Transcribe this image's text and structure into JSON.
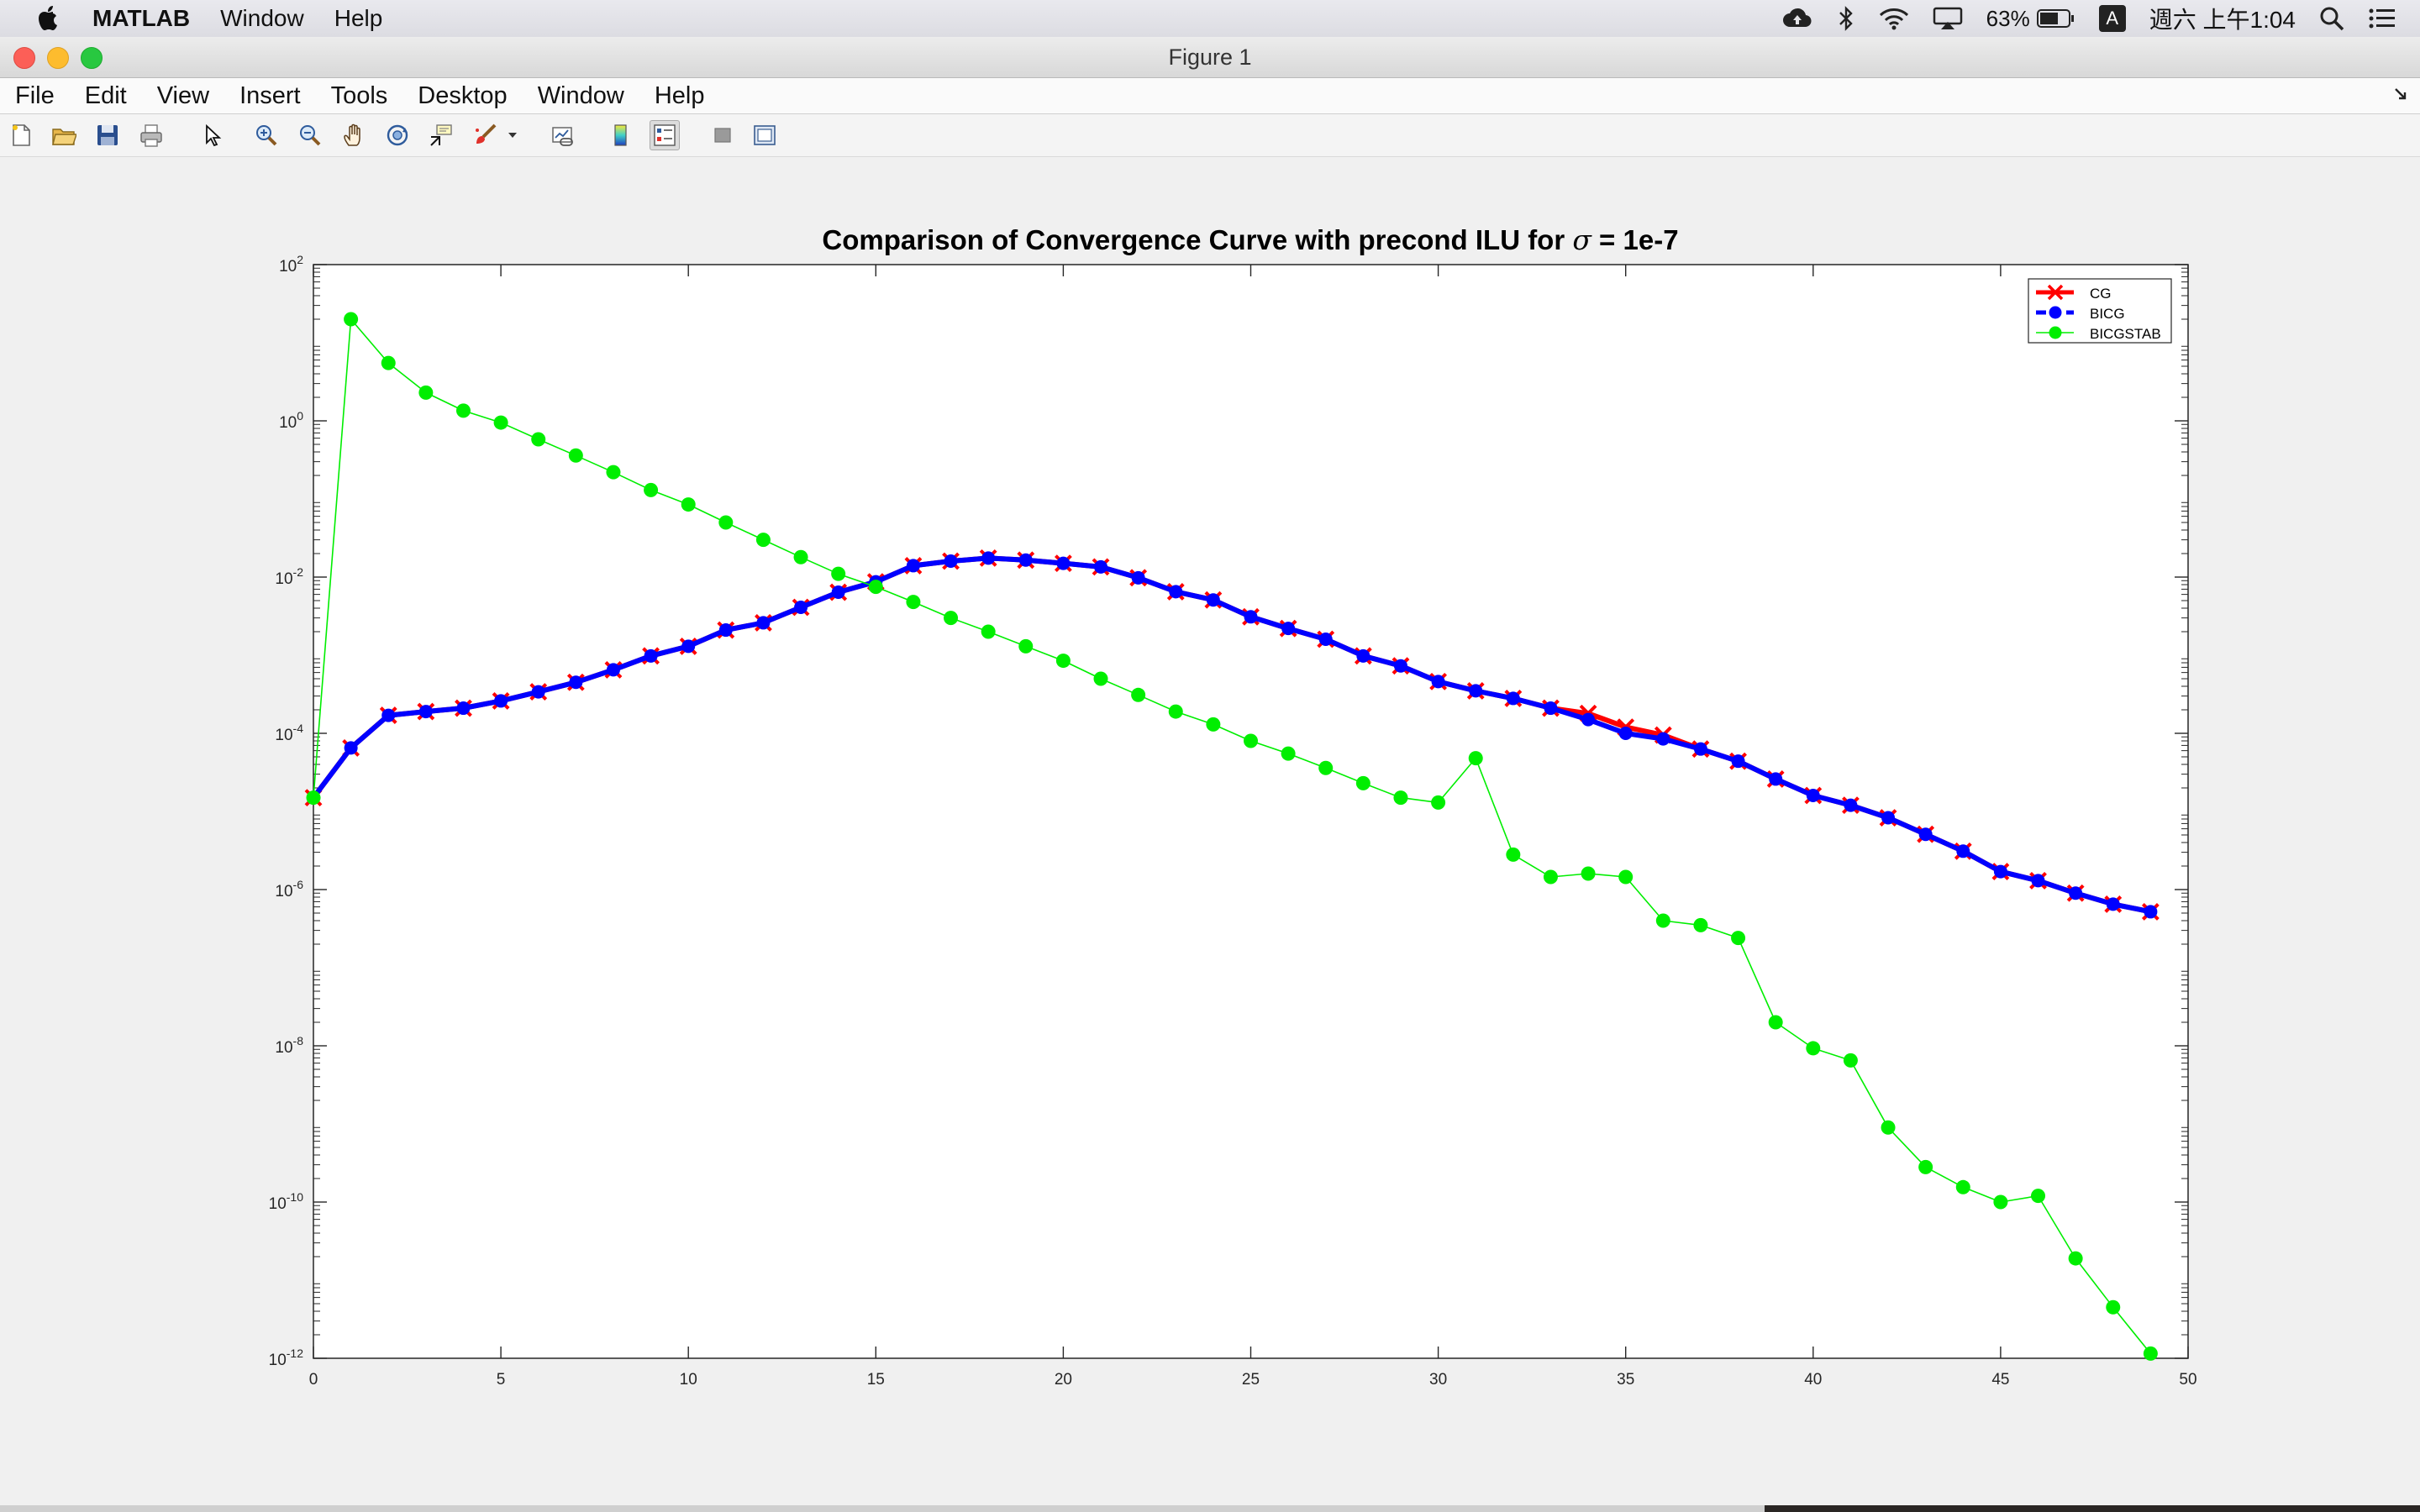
{
  "menubar": {
    "app_name": "MATLAB",
    "items": [
      "Window",
      "Help"
    ],
    "battery": "63%",
    "ime": "A",
    "clock": "週六 上午1:04"
  },
  "window": {
    "title": "Figure 1"
  },
  "figure_menu": [
    "File",
    "Edit",
    "View",
    "Insert",
    "Tools",
    "Desktop",
    "Window",
    "Help"
  ],
  "toolbar": {
    "icons": [
      "new-figure-icon",
      "open-file-icon",
      "save-icon",
      "print-icon",
      "edit-plot-pointer-icon",
      "zoom-in-icon",
      "zoom-out-icon",
      "pan-hand-icon",
      "rotate-3d-icon",
      "data-cursor-icon",
      "brush-icon",
      "brush-dropdown-icon",
      "link-plot-icon",
      "colorbar-icon",
      "legend-icon",
      "hide-plot-tools-icon",
      "show-plot-tools-icon"
    ]
  },
  "colors": {
    "cg": "#ff0000",
    "bicg": "#0000ff",
    "bicgstab": "#00ee00"
  },
  "chart_data": {
    "type": "line",
    "title": "Comparison of Convergence Curve with precond ILU for σ = 1e-7",
    "title_prefix": "Comparison of Convergence Curve with precond ILU for ",
    "title_symbol": "σ",
    "title_suffix": " = 1e-7",
    "xlabel": "",
    "ylabel": "",
    "xlim": [
      0,
      50
    ],
    "ylim": [
      1e-12,
      100
    ],
    "yscale": "log",
    "grid": false,
    "legend_position": "top-right",
    "x_ticks": [
      0,
      5,
      10,
      15,
      20,
      25,
      30,
      35,
      40,
      45,
      50
    ],
    "x_tick_labels": [
      "0",
      "5",
      "10",
      "15",
      "20",
      "25",
      "30",
      "35",
      "40",
      "45",
      "50"
    ],
    "y_tick_exponents": [
      2,
      0,
      -2,
      -4,
      -6,
      -8,
      -10,
      -12
    ],
    "y_tick_base": "10",
    "x": [
      0,
      1,
      2,
      3,
      4,
      5,
      6,
      7,
      8,
      9,
      10,
      11,
      12,
      13,
      14,
      15,
      16,
      17,
      18,
      19,
      20,
      21,
      22,
      23,
      24,
      25,
      26,
      27,
      28,
      29,
      30,
      31,
      32,
      33,
      34,
      35,
      36,
      37,
      38,
      39,
      40,
      41,
      42,
      43,
      44,
      45,
      46,
      47,
      48,
      49
    ],
    "series": [
      {
        "name": "CG",
        "color": "#ff0000",
        "marker": "x",
        "line": "solid",
        "values": [
          1.5e-05,
          6.5e-05,
          0.00017,
          0.00019,
          0.00021,
          0.00026,
          0.00034,
          0.00045,
          0.00065,
          0.00098,
          0.0013,
          0.0021,
          0.0026,
          0.0041,
          0.0064,
          0.0087,
          0.014,
          0.016,
          0.0175,
          0.0165,
          0.015,
          0.0135,
          0.0098,
          0.0065,
          0.0051,
          0.0031,
          0.0022,
          0.0016,
          0.00098,
          0.00073,
          0.00046,
          0.00035,
          0.00028,
          0.00021,
          0.00018,
          0.00012,
          9.5e-05,
          6.3e-05,
          4.4e-05,
          2.6e-05,
          1.6e-05,
          1.2e-05,
          8.3e-06,
          5.1e-06,
          3.1e-06,
          1.7e-06,
          1.3e-06,
          9e-07,
          6.5e-07,
          5.2e-07
        ]
      },
      {
        "name": "BICG",
        "color": "#0000ff",
        "marker": "o",
        "line": "dashed",
        "values": [
          1.5e-05,
          6.5e-05,
          0.00017,
          0.00019,
          0.00021,
          0.00026,
          0.00034,
          0.00045,
          0.00065,
          0.00098,
          0.0013,
          0.0021,
          0.0026,
          0.0041,
          0.0064,
          0.0087,
          0.014,
          0.016,
          0.0175,
          0.0165,
          0.015,
          0.0135,
          0.0098,
          0.0065,
          0.0051,
          0.0031,
          0.0022,
          0.0016,
          0.00098,
          0.00073,
          0.00046,
          0.00035,
          0.00028,
          0.00021,
          0.00015,
          0.0001,
          8.5e-05,
          6.3e-05,
          4.4e-05,
          2.6e-05,
          1.6e-05,
          1.2e-05,
          8.3e-06,
          5.1e-06,
          3.1e-06,
          1.7e-06,
          1.3e-06,
          9e-07,
          6.5e-07,
          5.2e-07
        ]
      },
      {
        "name": "BICGSTAB",
        "color": "#00ee00",
        "marker": "o",
        "line": "solid",
        "values": [
          1.5e-05,
          20,
          5.5,
          2.3,
          1.35,
          0.95,
          0.58,
          0.36,
          0.22,
          0.13,
          0.085,
          0.05,
          0.03,
          0.018,
          0.011,
          0.0075,
          0.0048,
          0.003,
          0.002,
          0.0013,
          0.00085,
          0.0005,
          0.00031,
          0.00019,
          0.00013,
          8e-05,
          5.5e-05,
          3.6e-05,
          2.3e-05,
          1.5e-05,
          1.3e-05,
          4.8e-05,
          2.8e-06,
          1.45e-06,
          1.6e-06,
          1.45e-06,
          4e-07,
          3.5e-07,
          2.4e-07,
          2e-08,
          9.3e-09,
          6.5e-09,
          9e-10,
          2.8e-10,
          1.55e-10,
          1e-10,
          1.2e-10,
          1.9e-11,
          4.5e-12,
          1.15e-12
        ]
      }
    ]
  }
}
